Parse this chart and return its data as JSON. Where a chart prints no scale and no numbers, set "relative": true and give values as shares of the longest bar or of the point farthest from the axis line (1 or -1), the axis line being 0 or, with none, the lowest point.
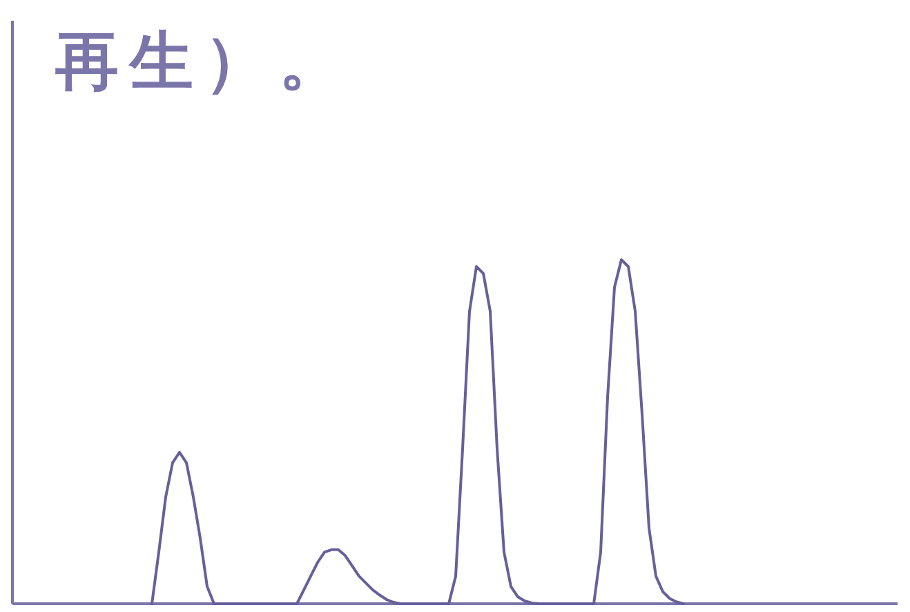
{
  "chart_data": {
    "type": "line",
    "title": "再生）。",
    "relative": true,
    "categories": [
      null,
      null,
      null,
      null,
      null,
      null,
      null,
      null,
      null,
      null,
      null,
      null,
      null,
      null,
      null,
      null,
      null,
      null,
      null,
      null,
      null,
      null,
      null,
      null,
      null,
      null,
      null,
      null,
      null,
      null,
      null,
      null,
      null,
      null,
      null,
      null,
      null,
      null,
      null,
      null,
      null,
      null,
      null,
      null,
      null,
      null,
      null,
      null,
      null,
      null,
      null,
      null,
      null,
      null,
      null,
      null,
      null,
      null,
      null,
      null,
      null,
      null,
      null,
      null,
      null,
      null,
      null,
      null,
      null,
      null,
      null,
      null,
      null,
      null,
      null,
      null,
      null,
      null
    ],
    "series": [
      {
        "color": "#66609a",
        "values": [
          0,
          0.15,
          0.31,
          0.41,
          0.44,
          0.41,
          0.31,
          0.19,
          0.05,
          0,
          0,
          0,
          0,
          0,
          0,
          0,
          0,
          0,
          0,
          0,
          0,
          0,
          0.04,
          0.08,
          0.12,
          0.15,
          0.157,
          0.157,
          0.14,
          0.11,
          0.08,
          0.06,
          0.04,
          0.025,
          0.012,
          0.004,
          0,
          0,
          0,
          0,
          0,
          0,
          0,
          0,
          0.08,
          0.45,
          0.85,
          0.98,
          0.96,
          0.85,
          0.45,
          0.15,
          0.05,
          0.02,
          0.008,
          0.002,
          0,
          0,
          0,
          0,
          0,
          0,
          0,
          0,
          0,
          0.15,
          0.6,
          0.92,
          1,
          0.98,
          0.85,
          0.55,
          0.22,
          0.08,
          0.035,
          0.015,
          0.005,
          0
        ]
      }
    ],
    "marker": "none",
    "line_style": "solid"
  }
}
